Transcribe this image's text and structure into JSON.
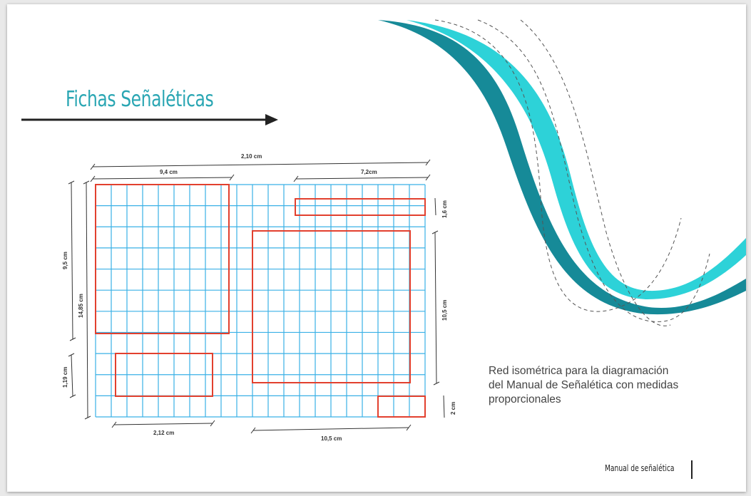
{
  "title": "Fichas Señaléticas",
  "description": {
    "lines": [
      "Red isométrica para la diagramación",
      "del Manual de Señalética  con medidas",
      "proporcionales"
    ]
  },
  "footer": "Manual de señalética",
  "dimensions": {
    "total_width": "2,10  cm",
    "left_width": "9,4 cm",
    "right_width": "7,2cm",
    "left_height_top": "9,5 cm",
    "total_height": "14,85 cm",
    "left_height_bottom": "1,19 cm",
    "right_strip_height": "1,6 cm",
    "right_block_height": "10,5 cm",
    "bottom_right_height": "2 cm",
    "bottom_left_width": "2,12 cm",
    "bottom_center_width": "10,5 cm"
  },
  "colors": {
    "title": "#2aa6b3",
    "grid": "#3ab0e6",
    "frames": "#e2402e",
    "wave_light": "#22d0d6",
    "wave_dark": "#168a98",
    "text": "#444444"
  },
  "icons": {
    "arrow": "right-arrow-icon"
  }
}
